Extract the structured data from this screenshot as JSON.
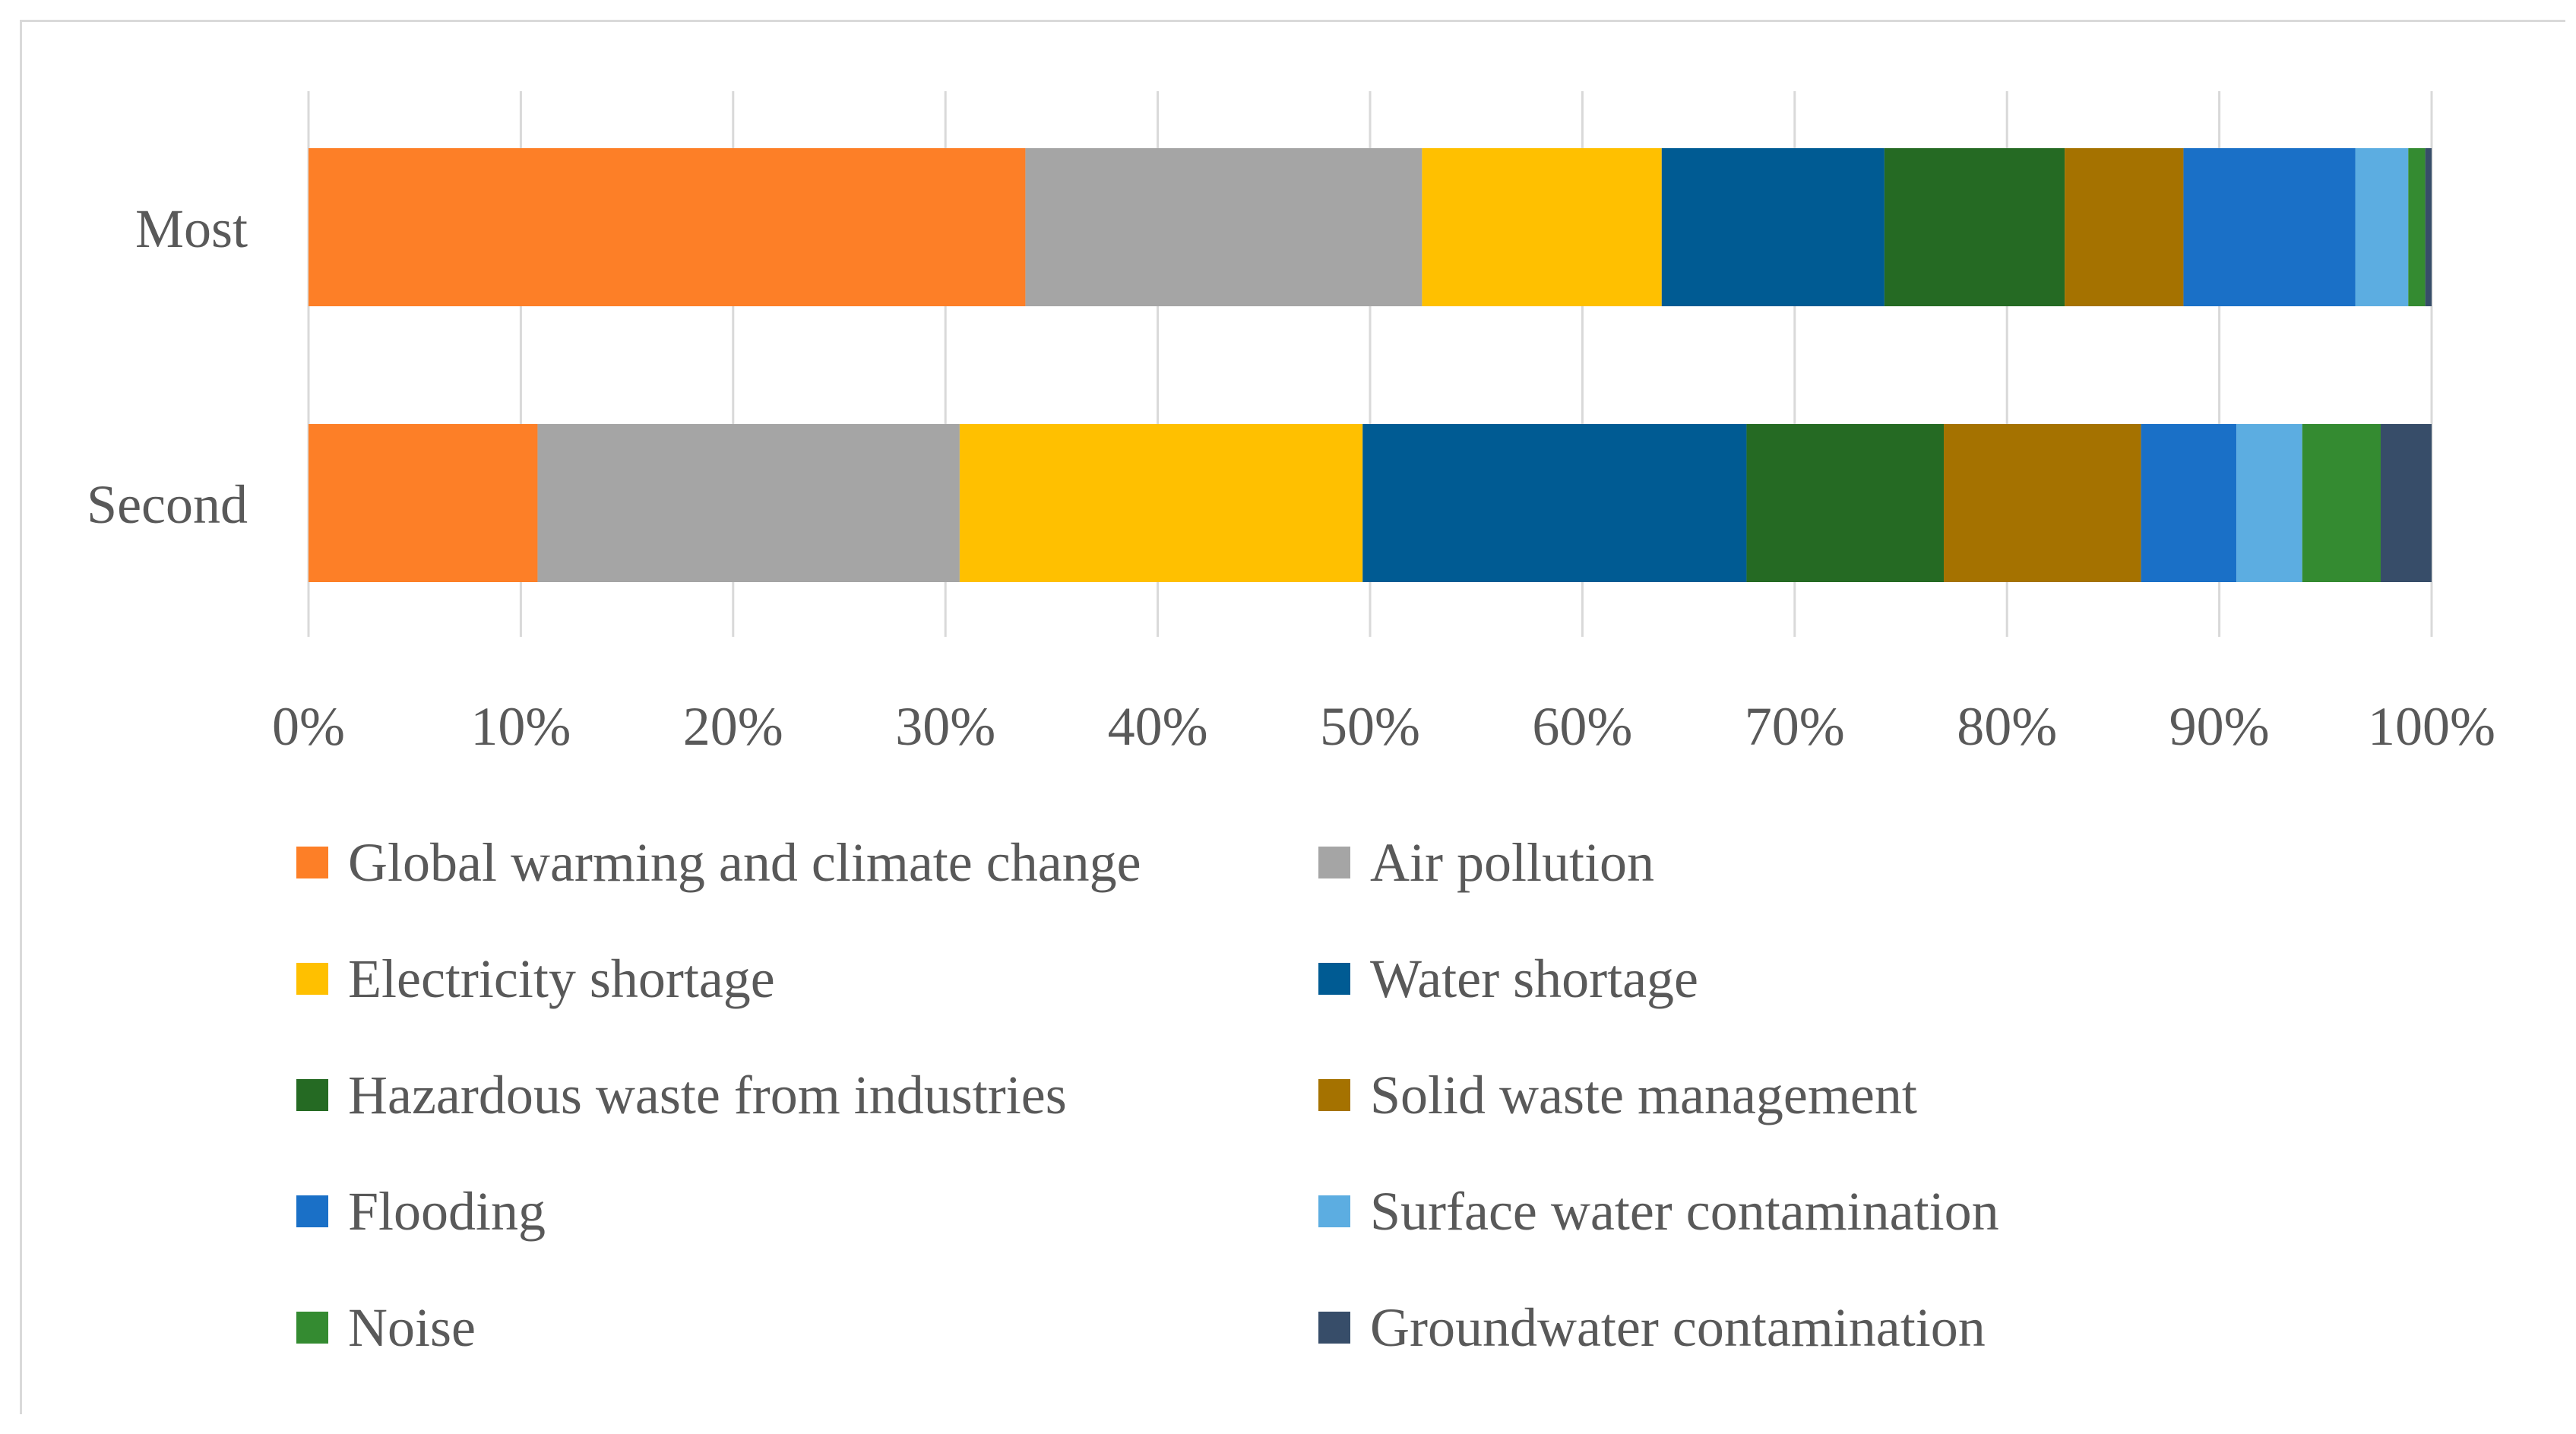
{
  "chart_data": {
    "type": "bar",
    "orientation": "horizontal",
    "stacked": "percent",
    "title": "",
    "xlabel": "",
    "ylabel": "",
    "xlim": [
      0,
      100
    ],
    "grid": true,
    "legend_position": "bottom",
    "categories": [
      "Most",
      "Second"
    ],
    "x_ticks": [
      "0%",
      "10%",
      "20%",
      "30%",
      "40%",
      "50%",
      "60%",
      "70%",
      "80%",
      "90%",
      "100%"
    ],
    "series": [
      {
        "name": "Global warming and climate change",
        "color": "#fd7f27",
        "values": [
          33.8,
          10.8
        ]
      },
      {
        "name": "Air pollution",
        "color": "#a5a5a5",
        "values": [
          18.7,
          19.9
        ]
      },
      {
        "name": "Electricity shortage",
        "color": "#ffc000",
        "values": [
          11.3,
          19.0
        ]
      },
      {
        "name": "Water shortage",
        "color": "#005b93",
        "values": [
          10.5,
          18.1
        ]
      },
      {
        "name": "Hazardous waste from industries",
        "color": "#256a23",
        "values": [
          8.5,
          9.3
        ]
      },
      {
        "name": "Solid waste management",
        "color": "#a57200",
        "values": [
          5.6,
          9.3
        ]
      },
      {
        "name": "Flooding",
        "color": "#1a70c7",
        "values": [
          8.1,
          4.5
        ]
      },
      {
        "name": "Surface water contamination",
        "color": "#5cade1",
        "values": [
          2.5,
          3.1
        ]
      },
      {
        "name": "Noise",
        "color": "#348b31",
        "values": [
          0.8,
          3.7
        ]
      },
      {
        "name": "Groundwater contamination",
        "color": "#374d69",
        "values": [
          0.3,
          2.4
        ]
      }
    ]
  }
}
